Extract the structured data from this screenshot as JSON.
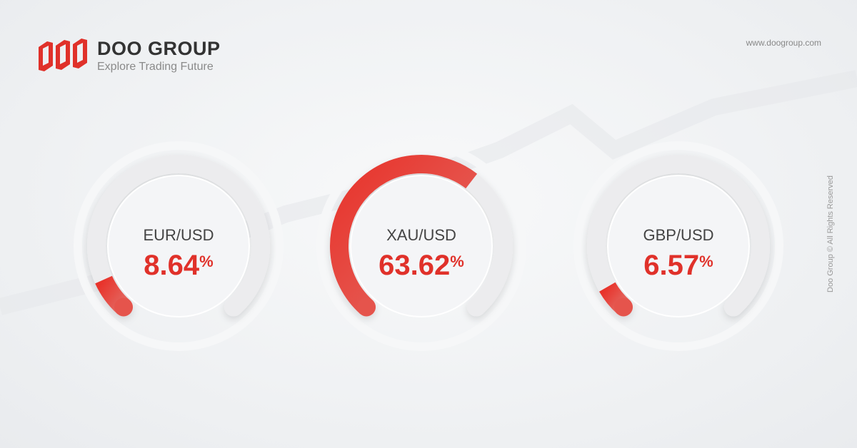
{
  "brand": {
    "name": "DOO GROUP",
    "tagline": "Explore Trading Future",
    "url": "www.doogroup.com",
    "copyright": "Doo Group © All Rights Reserved"
  },
  "colors": {
    "accent": "#e0312a",
    "track": "#ececee",
    "text": "#444444"
  },
  "chart_data": {
    "type": "gauge",
    "range": [
      0,
      100
    ],
    "unit": "%",
    "categories": [
      "EUR/USD",
      "XAU/USD",
      "GBP/USD"
    ],
    "values": [
      8.64,
      63.62,
      6.57
    ],
    "labels": [
      "8.64",
      "63.62",
      "6.57"
    ]
  }
}
